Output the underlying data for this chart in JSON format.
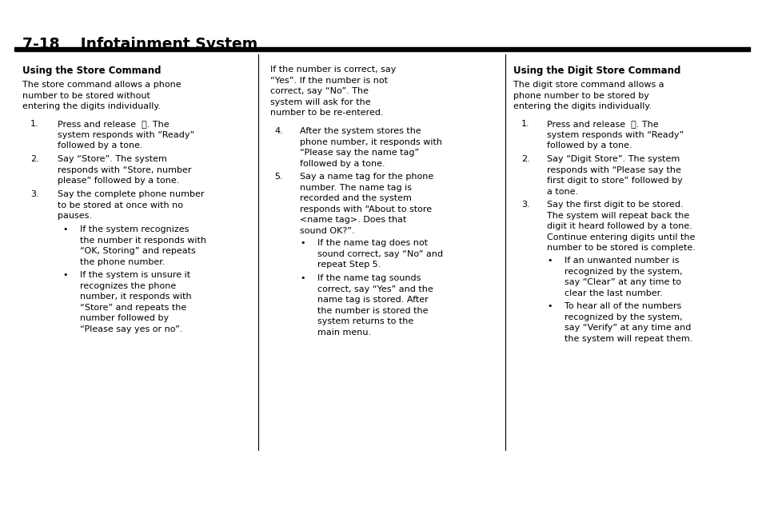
{
  "page_title": "7-18    Infotainment System",
  "bg_color": "#ffffff",
  "text_color": "#000000",
  "title_bar_color": "#000000",
  "col1_header": "Using the Store Command",
  "col1_intro": "The store command allows a phone\nnumber to be stored without\nentering the digits individually.",
  "col1_item1": "Press and release  ⓕ. The\nsystem responds with “Ready”\nfollowed by a tone.",
  "col1_item2": "Say “Store”. The system\nresponds with “Store, number\nplease” followed by a tone.",
  "col1_item3": "Say the complete phone number\nto be stored at once with no\npauses.",
  "col1_bullet1": "If the system recognizes\nthe number it responds with\n“OK, Storing” and repeats\nthe phone number.",
  "col1_bullet2": "If the system is unsure it\nrecognizes the phone\nnumber, it responds with\n“Store” and repeats the\nnumber followed by\n“Please say yes or no”.",
  "col2_intro_bullet": "If the number is correct, say\n“Yes”. If the number is not\ncorrect, say “No”. The\nsystem will ask for the\nnumber to be re-entered.",
  "col2_item4": "After the system stores the\nphone number, it responds with\n“Please say the name tag”\nfollowed by a tone.",
  "col2_item5": "Say a name tag for the phone\nnumber. The name tag is\nrecorded and the system\nresponds with “About to store\n<name tag>. Does that\nsound OK?”.",
  "col2_bullet1": "If the name tag does not\nsound correct, say “No” and\nrepeat Step 5.",
  "col2_bullet2": "If the name tag sounds\ncorrect, say “Yes” and the\nname tag is stored. After\nthe number is stored the\nsystem returns to the\nmain menu.",
  "col3_header": "Using the Digit Store Command",
  "col3_intro": "The digit store command allows a\nphone number to be stored by\nentering the digits individually.",
  "col3_item1": "Press and release  ⓕ. The\nsystem responds with “Ready”\nfollowed by a tone.",
  "col3_item2": "Say “Digit Store”. The system\nresponds with “Please say the\nfirst digit to store” followed by\na tone.",
  "col3_item3": "Say the first digit to be stored.\nThe system will repeat back the\ndigit it heard followed by a tone.\nContinue entering digits until the\nnumber to be stored is complete.",
  "col3_bullet1": "If an unwanted number is\nrecognized by the system,\nsay “Clear” at any time to\nclear the last number.",
  "col3_bullet2": "To hear all of the numbers\nrecognized by the system,\nsay “Verify” at any time and\nthe system will repeat them."
}
